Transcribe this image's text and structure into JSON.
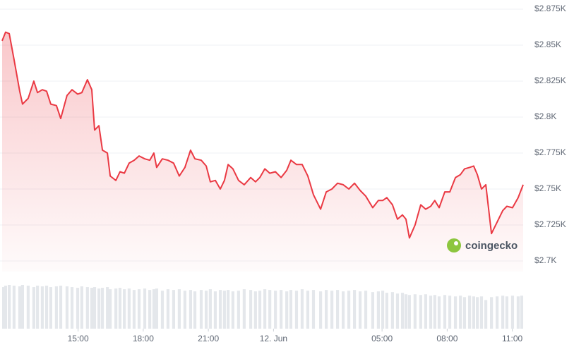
{
  "chart_data": {
    "type": "area",
    "color": "#ea3943",
    "volume_color": "#e4e7eb",
    "grid": true,
    "watermark": "coingecko",
    "xlim": [
      0,
      24
    ],
    "xticks": [
      {
        "value": 3.5,
        "label": "15:00"
      },
      {
        "value": 6.5,
        "label": "18:00"
      },
      {
        "value": 9.5,
        "label": "21:00"
      },
      {
        "value": 12.5,
        "label": "12. Jun"
      },
      {
        "value": 17.5,
        "label": "05:00"
      },
      {
        "value": 20.5,
        "label": "08:00"
      },
      {
        "value": 23.5,
        "label": "11:00"
      }
    ],
    "ylim": [
      2700,
      2875
    ],
    "yticks": [
      {
        "value": 2700,
        "label": "$2.7K"
      },
      {
        "value": 2725,
        "label": "$2.725K"
      },
      {
        "value": 2750,
        "label": "$2.75K"
      },
      {
        "value": 2775,
        "label": "$2.775K"
      },
      {
        "value": 2800,
        "label": "$2.8K"
      },
      {
        "value": 2825,
        "label": "$2.825K"
      },
      {
        "value": 2850,
        "label": "$2.85K"
      },
      {
        "value": 2875,
        "label": "$2.875K"
      }
    ],
    "x": [
      0,
      0.16,
      0.33,
      0.55,
      0.81,
      0.94,
      1.2,
      1.46,
      1.63,
      1.85,
      2.05,
      2.24,
      2.5,
      2.7,
      2.99,
      3.22,
      3.48,
      3.67,
      3.93,
      4.13,
      4.26,
      4.46,
      4.62,
      4.85,
      4.98,
      5.24,
      5.43,
      5.63,
      5.85,
      6.08,
      6.31,
      6.57,
      6.8,
      6.99,
      7.12,
      7.38,
      7.64,
      7.9,
      8.16,
      8.42,
      8.68,
      8.88,
      9.17,
      9.4,
      9.59,
      9.82,
      10.05,
      10.24,
      10.41,
      10.63,
      10.89,
      11.15,
      11.45,
      11.67,
      11.87,
      12.1,
      12.33,
      12.59,
      12.85,
      13.11,
      13.3,
      13.56,
      13.82,
      14.08,
      14.34,
      14.67,
      14.93,
      15.19,
      15.45,
      15.71,
      15.97,
      16.23,
      16.49,
      16.75,
      17.07,
      17.33,
      17.53,
      17.72,
      17.98,
      18.21,
      18.44,
      18.6,
      18.76,
      19.02,
      19.28,
      19.51,
      19.74,
      19.93,
      20.13,
      20.39,
      20.62,
      20.88,
      21.11,
      21.3,
      21.53,
      21.72,
      21.89,
      22.08,
      22.28,
      22.54,
      22.8,
      23.06,
      23.25,
      23.51,
      23.77,
      24
    ],
    "values": [
      2853,
      2859,
      2858,
      2840,
      2818,
      2809,
      2813,
      2825,
      2817,
      2819,
      2818,
      2809,
      2808,
      2799,
      2815,
      2819,
      2816,
      2817,
      2826,
      2819,
      2791,
      2794,
      2777,
      2775,
      2759,
      2756,
      2762,
      2761,
      2768,
      2770,
      2773,
      2771,
      2770,
      2775,
      2765,
      2771,
      2770,
      2768,
      2759,
      2765,
      2777,
      2771,
      2770,
      2766,
      2755,
      2756,
      2750,
      2756,
      2767,
      2764,
      2756,
      2753,
      2758,
      2755,
      2758,
      2764,
      2761,
      2762,
      2758,
      2763,
      2770,
      2767,
      2767,
      2759,
      2746,
      2736,
      2748,
      2750,
      2754,
      2753,
      2750,
      2754,
      2749,
      2745,
      2737,
      2742,
      2742,
      2744,
      2739,
      2729,
      2732,
      2729,
      2716,
      2725,
      2739,
      2736,
      2738,
      2742,
      2737,
      2748,
      2748,
      2758,
      2760,
      2764,
      2765,
      2766,
      2760,
      2750,
      2753,
      2719,
      2727,
      2735,
      2738,
      2737,
      2744,
      2753
    ],
    "volume": [
      58,
      60,
      61,
      60,
      59,
      61,
      60,
      58,
      60,
      59,
      60,
      58,
      59,
      60,
      59,
      58,
      57,
      59,
      58,
      57,
      58,
      56,
      57,
      58,
      55,
      56,
      57,
      55,
      56,
      54,
      55,
      56,
      54,
      55,
      56,
      53,
      55,
      54,
      55,
      53,
      54,
      52,
      54,
      53,
      55,
      52,
      54,
      53,
      54,
      52,
      53,
      55,
      54,
      52,
      53,
      55,
      54,
      53,
      54,
      52,
      54,
      53,
      55,
      53,
      54,
      52,
      54,
      53,
      54,
      52,
      53,
      54,
      52,
      53,
      51,
      52,
      53,
      50,
      51,
      49,
      50,
      48,
      47,
      48,
      47,
      48,
      46,
      47,
      45,
      47,
      46,
      45,
      46,
      44,
      46,
      45,
      44,
      45,
      40,
      44,
      45,
      46,
      45,
      46,
      45,
      46
    ]
  }
}
